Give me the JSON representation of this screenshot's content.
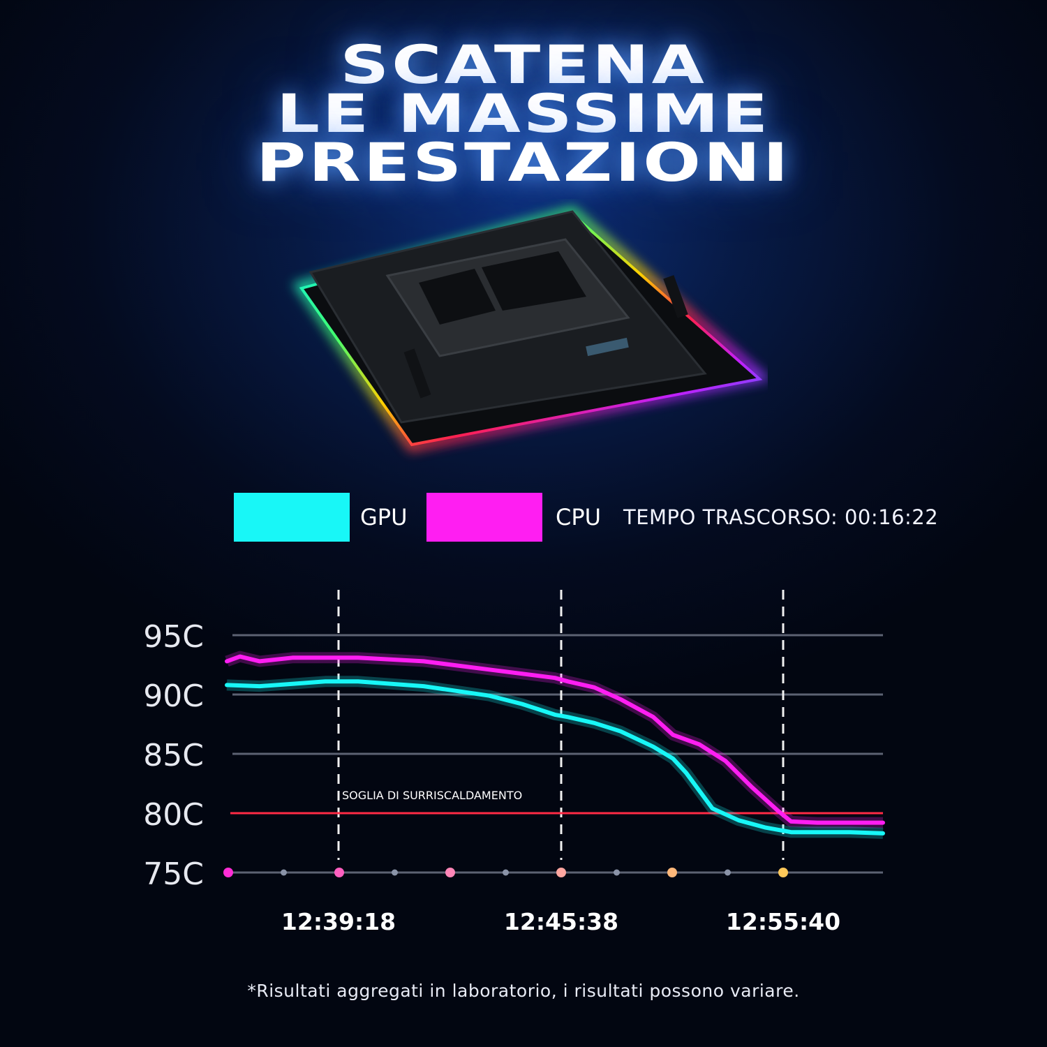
{
  "headline": [
    "SCATENA",
    "LE MASSIME",
    "PRESTAZIONI"
  ],
  "legend": {
    "gpu": {
      "label": "GPU",
      "color": "#18f7f7"
    },
    "cpu": {
      "label": "CPU",
      "color": "#ff1ef2"
    },
    "elapsed": "TEMPO TRASCORSO: 00:16:22"
  },
  "chart_data": {
    "type": "line",
    "y_unit": "C",
    "ylim": [
      75,
      95
    ],
    "y_ticks": [
      "95C",
      "90C",
      "85C",
      "80C",
      "75C"
    ],
    "x_time_labels": [
      "12:39:18",
      "12:45:38",
      "12:55:40"
    ],
    "threshold": {
      "value": 80,
      "label": "SOGLIA DI SURRISCALDAMENTO",
      "color": "#ff2a45"
    },
    "series": [
      {
        "name": "CPU",
        "color": "#ff1ef2",
        "points": [
          [
            0,
            92.8
          ],
          [
            0.02,
            93.2
          ],
          [
            0.05,
            92.8
          ],
          [
            0.1,
            93.1
          ],
          [
            0.2,
            93.1
          ],
          [
            0.3,
            92.8
          ],
          [
            0.4,
            92.1
          ],
          [
            0.5,
            91.4
          ],
          [
            0.52,
            91.1
          ],
          [
            0.56,
            90.6
          ],
          [
            0.6,
            89.6
          ],
          [
            0.65,
            88.1
          ],
          [
            0.68,
            86.6
          ],
          [
            0.72,
            85.8
          ],
          [
            0.76,
            84.4
          ],
          [
            0.8,
            82.2
          ],
          [
            0.84,
            80.2
          ],
          [
            0.86,
            79.3
          ],
          [
            0.9,
            79.2
          ],
          [
            0.95,
            79.2
          ],
          [
            1,
            79.2
          ]
        ]
      },
      {
        "name": "GPU",
        "color": "#18f7f7",
        "points": [
          [
            0,
            90.8
          ],
          [
            0.05,
            90.7
          ],
          [
            0.1,
            90.9
          ],
          [
            0.15,
            91.1
          ],
          [
            0.2,
            91.1
          ],
          [
            0.3,
            90.7
          ],
          [
            0.4,
            89.9
          ],
          [
            0.45,
            89.2
          ],
          [
            0.5,
            88.3
          ],
          [
            0.52,
            88.1
          ],
          [
            0.56,
            87.6
          ],
          [
            0.6,
            86.9
          ],
          [
            0.65,
            85.6
          ],
          [
            0.68,
            84.6
          ],
          [
            0.7,
            83.4
          ],
          [
            0.72,
            81.9
          ],
          [
            0.74,
            80.4
          ],
          [
            0.78,
            79.4
          ],
          [
            0.82,
            78.8
          ],
          [
            0.86,
            78.4
          ],
          [
            0.9,
            78.4
          ],
          [
            0.95,
            78.4
          ],
          [
            1,
            78.3
          ]
        ]
      }
    ],
    "markers": [
      "#ff2dd6",
      "#8a93a8",
      "#ff5fc0",
      "#8a93a8",
      "#ff86b8",
      "#8a93a8",
      "#ffa6a0",
      "#8a93a8",
      "#ffb87a",
      "#8a93a8",
      "#ffc85a"
    ],
    "grid": true
  },
  "footnote": "*Risultati aggregati in laboratorio, i risultati possono variare."
}
